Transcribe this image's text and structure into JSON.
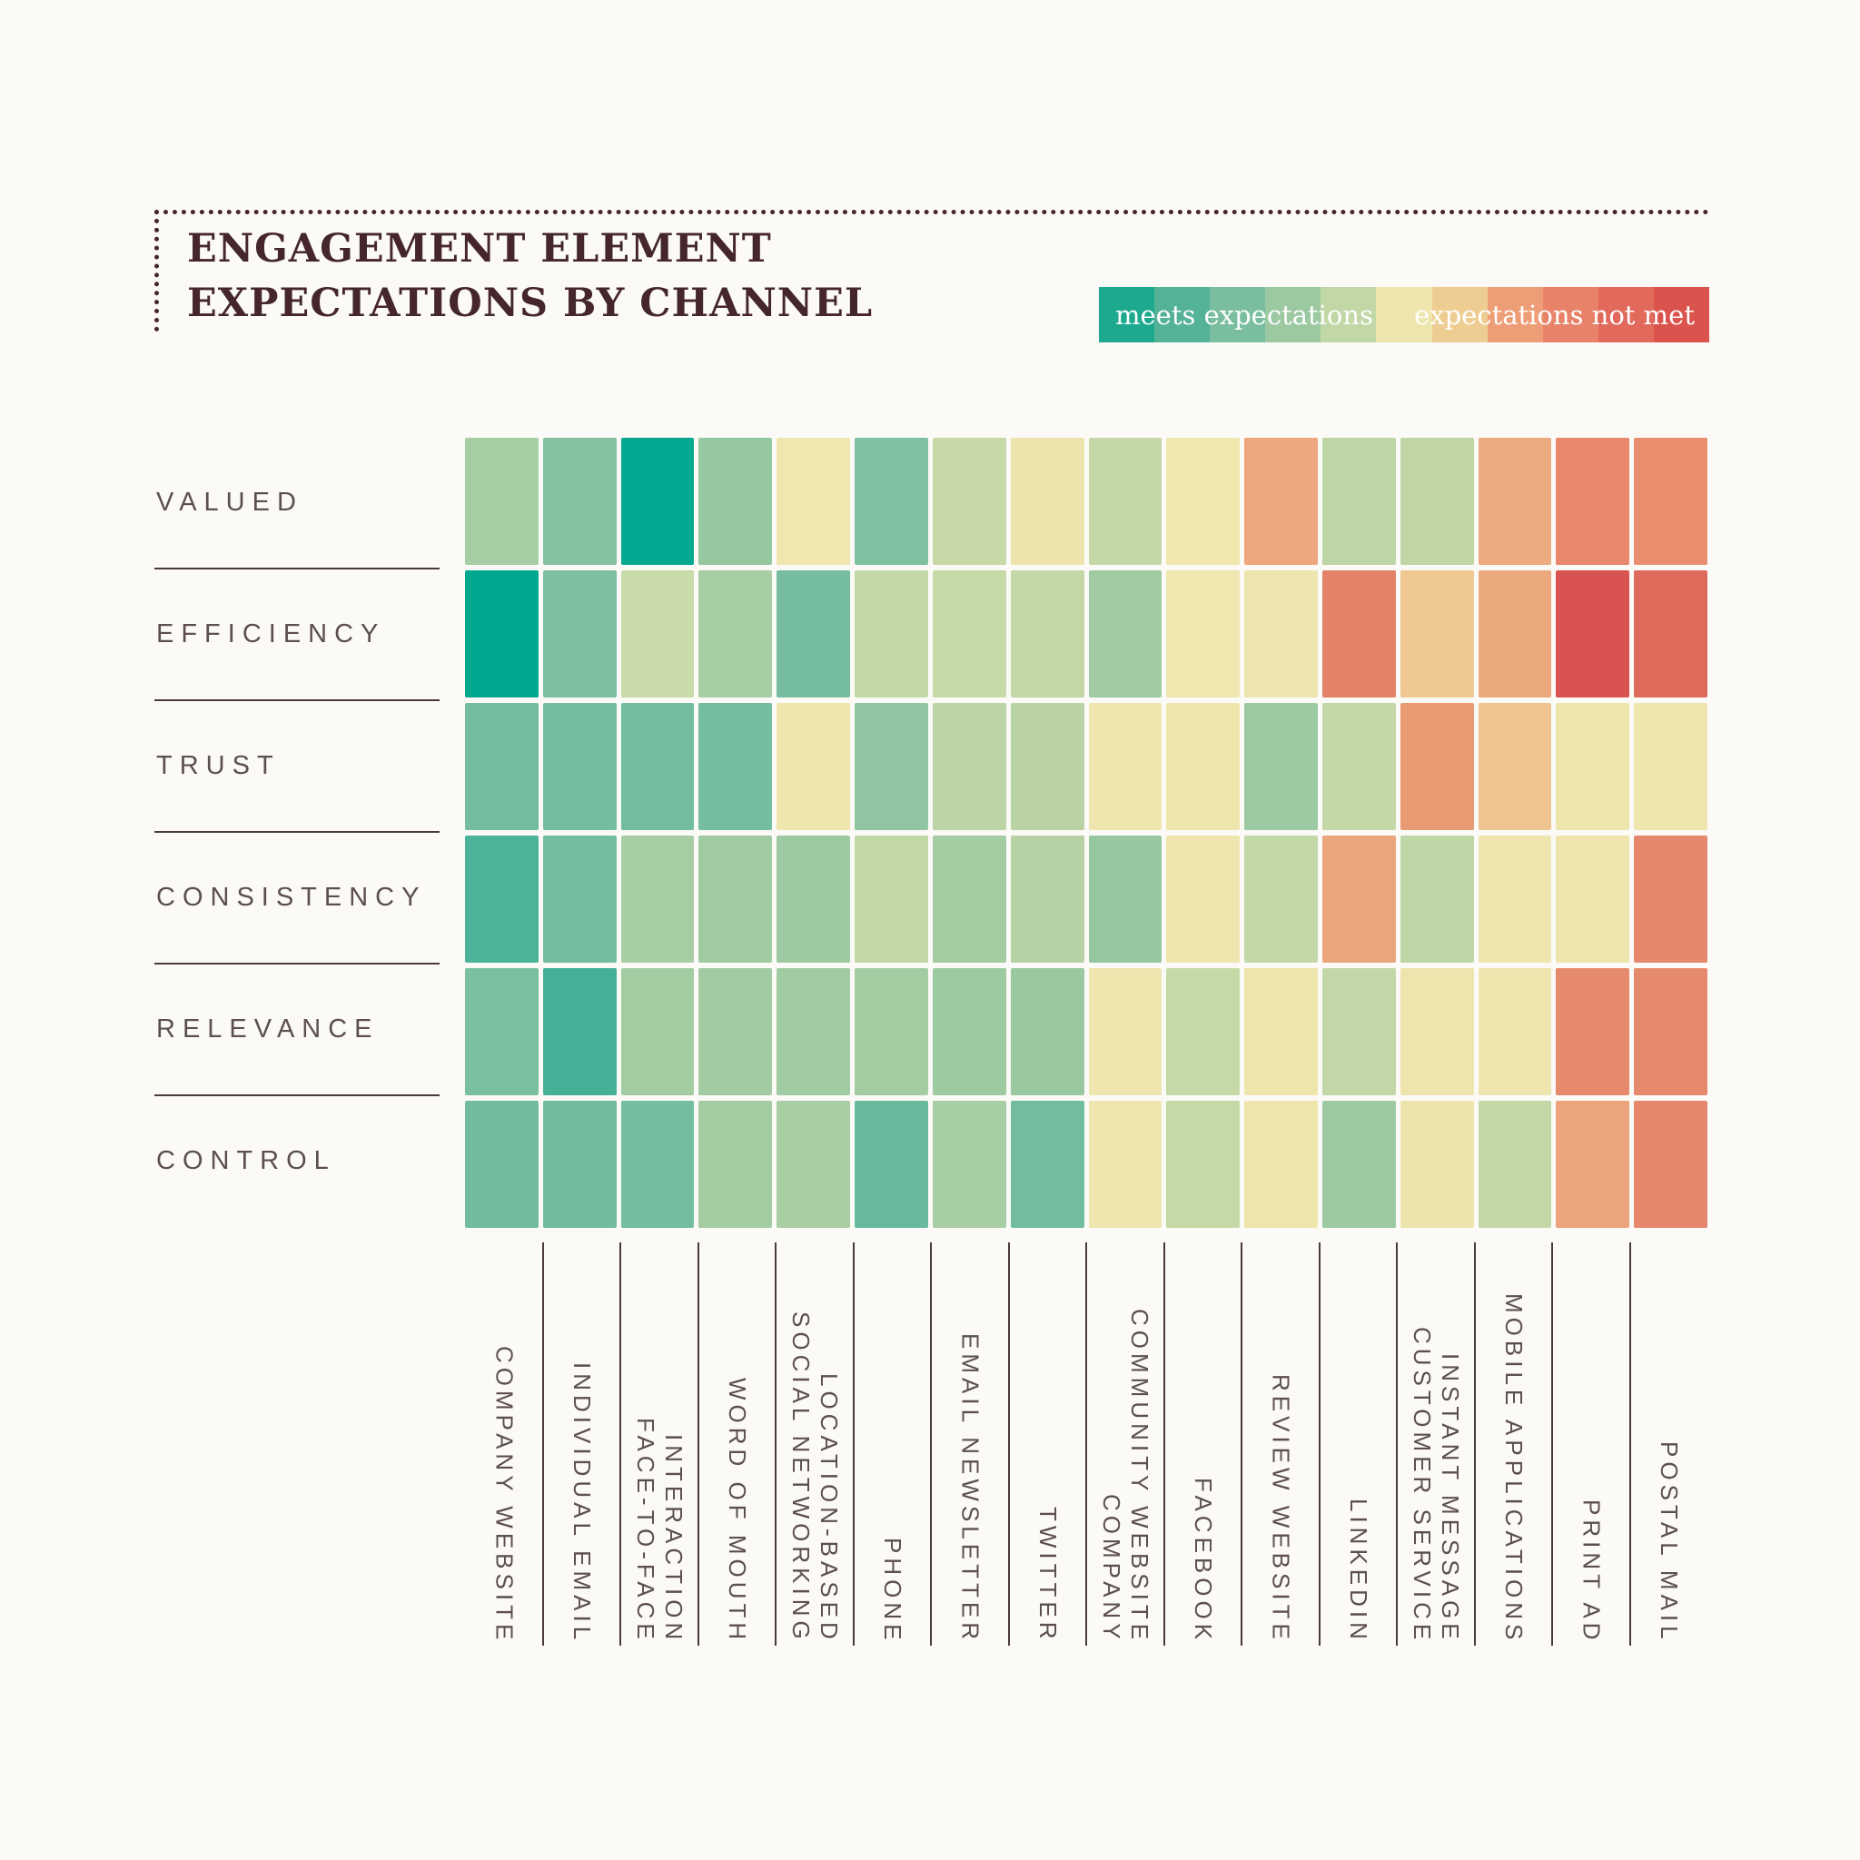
{
  "title": {
    "line1": "ENGAGEMENT ELEMENT",
    "line2": "EXPECTATIONS BY CHANNEL"
  },
  "legend": {
    "left_label": "meets expectations",
    "right_label": "expectations not met",
    "swatches": [
      "#1ca98d",
      "#54b297",
      "#7abe9f",
      "#9cc9a2",
      "#c1d7a6",
      "#eee6ae",
      "#eecd92",
      "#ed9e76",
      "#e88369",
      "#e26a5d",
      "#da544d"
    ]
  },
  "chart_data": {
    "type": "heatmap",
    "title": "ENGAGEMENT ELEMENT EXPECTATIONS BY CHANNEL",
    "scale": {
      "best": "meets expectations",
      "worst": "expectations not met",
      "levels": 11
    },
    "rows": [
      "VALUED",
      "EFFICIENCY",
      "TRUST",
      "CONSISTENCY",
      "RELEVANCE",
      "CONTROL"
    ],
    "columns": [
      {
        "label": "COMPANY WEBSITE",
        "lines": [
          "COMPANY WEBSITE"
        ]
      },
      {
        "label": "INDIVIDUAL EMAIL",
        "lines": [
          "INDIVIDUAL EMAIL"
        ]
      },
      {
        "label": "FACE-TO-FACE INTERACTION",
        "lines": [
          "FACE-TO-FACE",
          "INTERACTION"
        ]
      },
      {
        "label": "WORD OF MOUTH",
        "lines": [
          "WORD OF MOUTH"
        ]
      },
      {
        "label": "LOCATION-BASED SOCIAL NETWORKING",
        "lines": [
          "SOCIAL NETWORKING",
          "LOCATION-BASED"
        ]
      },
      {
        "label": "PHONE",
        "lines": [
          "PHONE"
        ]
      },
      {
        "label": "EMAIL NEWSLETTER",
        "lines": [
          "EMAIL NEWSLETTER"
        ]
      },
      {
        "label": "TWITTER",
        "lines": [
          "TWITTER"
        ]
      },
      {
        "label": "COMPANY COMMUNITY WEBSITE",
        "lines": [
          "COMPANY",
          "COMMUNITY WEBSITE"
        ]
      },
      {
        "label": "FACEBOOK",
        "lines": [
          "FACEBOOK"
        ]
      },
      {
        "label": "REVIEW WEBSITE",
        "lines": [
          "REVIEW WEBSITE"
        ]
      },
      {
        "label": "LINKEDIN",
        "lines": [
          "LINKEDIN"
        ]
      },
      {
        "label": "CUSTOMER SERVICE INSTANT MESSAGE",
        "lines": [
          "CUSTOMER SERVICE",
          "INSTANT MESSAGE"
        ]
      },
      {
        "label": "MOBILE APPLICATIONS",
        "lines": [
          "MOBILE APPLICATIONS"
        ]
      },
      {
        "label": "PRINT AD",
        "lines": [
          "PRINT AD"
        ]
      },
      {
        "label": "POSTAL MAIL",
        "lines": [
          "POSTAL MAIL"
        ]
      }
    ],
    "cell_colors": [
      [
        "#a6cda3",
        "#84c1a0",
        "#04a890",
        "#95c7a1",
        "#efe7af",
        "#7ec0a0",
        "#c6d9a7",
        "#ece4ac",
        "#c3d8a6",
        "#efe7ae",
        "#eda67d",
        "#bed5a5",
        "#c0d6a5",
        "#ecab80",
        "#e8886c",
        "#e98f70"
      ],
      [
        "#00a890",
        "#7dbfa0",
        "#c9dba8",
        "#a7cda4",
        "#76bda0",
        "#c3d8a7",
        "#c6daa7",
        "#c3d8a6",
        "#a0cba2",
        "#efe7b0",
        "#ece5af",
        "#e28368",
        "#f0c892",
        "#eca97e",
        "#d95450",
        "#de6a5b"
      ],
      [
        "#73bc9f",
        "#75bd9f",
        "#72bc9f",
        "#75bd9f",
        "#efe6ae",
        "#8fc5a1",
        "#bdd5a6",
        "#b9d3a5",
        "#eee6ae",
        "#eee6ad",
        "#9bc9a2",
        "#c4d8a7",
        "#e89a73",
        "#efc48e",
        "#eee5ac",
        "#eee6ae"
      ],
      [
        "#4cb29a",
        "#73bc9f",
        "#a6cda4",
        "#a0caa2",
        "#9dc9a2",
        "#c1d7a6",
        "#a4cca3",
        "#b6d2a5",
        "#96c7a1",
        "#eee6ae",
        "#c3d8a7",
        "#eba57c",
        "#bfd6a6",
        "#eee6ae",
        "#ede5ad",
        "#e5876c"
      ],
      [
        "#7abfa0",
        "#45b098",
        "#a4cca3",
        "#a2cba3",
        "#a1cba2",
        "#a4cca3",
        "#9ecaa2",
        "#99c8a1",
        "#eee6ae",
        "#c5d9a7",
        "#eee5ad",
        "#c2d7a7",
        "#ede5ad",
        "#eee6ae",
        "#e58a6c",
        "#e58a6c"
      ],
      [
        "#71bc9f",
        "#71bc9f",
        "#74bd9f",
        "#a4cca3",
        "#a9cea4",
        "#69b99e",
        "#a6cda3",
        "#72bc9f",
        "#eee6ae",
        "#c5d9a7",
        "#eee5ad",
        "#9dc9a2",
        "#ece4ac",
        "#c4d8a7",
        "#eba47b",
        "#e5876c"
      ]
    ],
    "levels_1_best_to_11_worst": [
      [
        4,
        3,
        1,
        4,
        6,
        3,
        5,
        6,
        5,
        6,
        8,
        5,
        5,
        8,
        9,
        9
      ],
      [
        1,
        3,
        5,
        4,
        3,
        5,
        5,
        5,
        4,
        6,
        6,
        9,
        7,
        8,
        11,
        10
      ],
      [
        3,
        3,
        3,
        3,
        6,
        4,
        5,
        5,
        6,
        6,
        4,
        5,
        8,
        7,
        6,
        6
      ],
      [
        2,
        3,
        4,
        4,
        4,
        5,
        4,
        5,
        4,
        6,
        5,
        8,
        5,
        6,
        6,
        9
      ],
      [
        3,
        2,
        4,
        4,
        4,
        4,
        4,
        4,
        6,
        5,
        6,
        5,
        6,
        6,
        9,
        9
      ],
      [
        3,
        3,
        3,
        4,
        4,
        3,
        4,
        3,
        6,
        5,
        6,
        4,
        6,
        5,
        8,
        9
      ]
    ]
  },
  "layout_colors": {
    "background": "#fbfaf7",
    "title_text": "#44262c",
    "axis_text": "#5d4f50",
    "line": "#4b3a3c"
  }
}
